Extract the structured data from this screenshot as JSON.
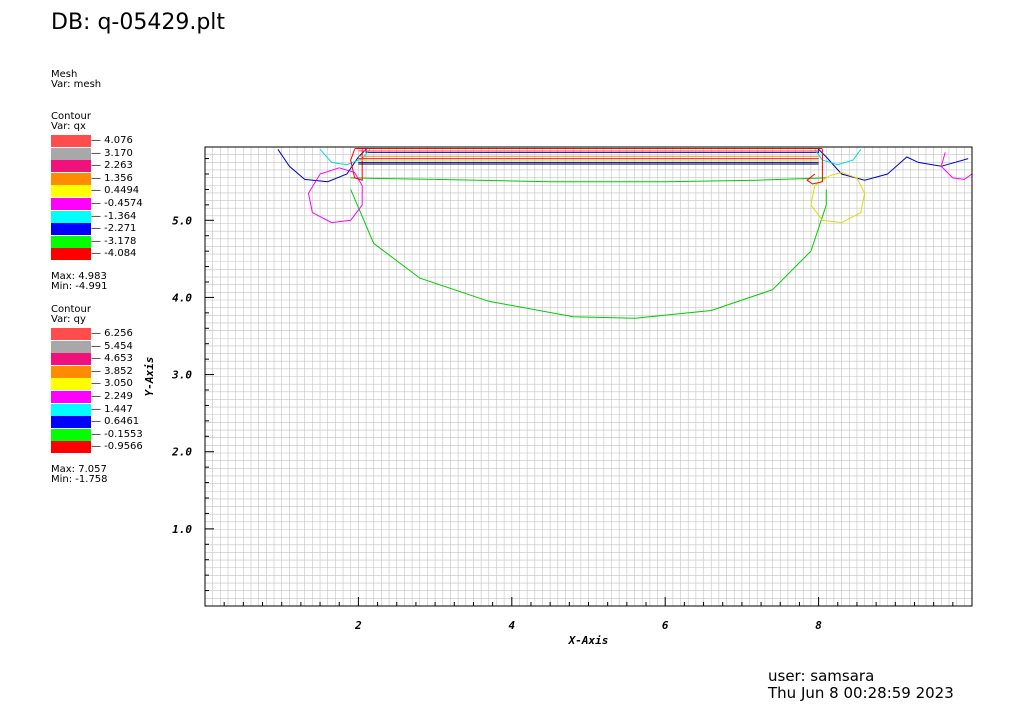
{
  "title": "DB: q-05429.plt",
  "mesh_legend": {
    "header": "Mesh",
    "var": "Var: mesh"
  },
  "qx_legend": {
    "header": "Contour",
    "var": "Var: qx",
    "entries": [
      {
        "label": "4.076",
        "color": "#ff4d4d"
      },
      {
        "label": "3.170",
        "color": "#a8a8a8"
      },
      {
        "label": "2.263",
        "color": "#f0117a"
      },
      {
        "label": "1.356",
        "color": "#ff8c00"
      },
      {
        "label": "0.4494",
        "color": "#ffff00"
      },
      {
        "label": "-0.4574",
        "color": "#ff00ff"
      },
      {
        "label": "-1.364",
        "color": "#00ffff"
      },
      {
        "label": "-2.271",
        "color": "#0000ff"
      },
      {
        "label": "-3.178",
        "color": "#00ff00"
      },
      {
        "label": "-4.084",
        "color": "#ff0000"
      }
    ],
    "max": "Max:  4.983",
    "min": "Min: -4.991"
  },
  "qy_legend": {
    "header": "Contour",
    "var": "Var: qy",
    "entries": [
      {
        "label": "6.256",
        "color": "#ff4d4d"
      },
      {
        "label": "5.454",
        "color": "#a8a8a8"
      },
      {
        "label": "4.653",
        "color": "#f0117a"
      },
      {
        "label": "3.852",
        "color": "#ff8c00"
      },
      {
        "label": "3.050",
        "color": "#ffff00"
      },
      {
        "label": "2.249",
        "color": "#ff00ff"
      },
      {
        "label": "1.447",
        "color": "#00ffff"
      },
      {
        "label": "0.6461",
        "color": "#0000ff"
      },
      {
        "label": "-0.1553",
        "color": "#00ff00"
      },
      {
        "label": "-0.9566",
        "color": "#ff0000"
      }
    ],
    "max": "Max:  7.057",
    "min": "Min: -1.758"
  },
  "footer": {
    "user": "user: samsara",
    "timestamp": "Thu Jun  8 00:28:59 2023"
  },
  "chart_data": {
    "type": "contour",
    "xlabel": "X-Axis",
    "ylabel": "Y-Axis",
    "xlim": [
      0.0,
      10.0
    ],
    "ylim": [
      0.0,
      5.95
    ],
    "xticks": [
      {
        "value": 2,
        "label": "2"
      },
      {
        "value": 4,
        "label": "4"
      },
      {
        "value": 6,
        "label": "6"
      },
      {
        "value": 8,
        "label": "8"
      }
    ],
    "yticks": [
      {
        "value": 1.0,
        "label": "1.0"
      },
      {
        "value": 2.0,
        "label": "2.0"
      },
      {
        "value": 3.0,
        "label": "3.0"
      },
      {
        "value": 4.0,
        "label": "4.0"
      },
      {
        "value": 5.0,
        "label": "5.0"
      }
    ],
    "mesh": {
      "nx": 100,
      "ny": 60
    },
    "contours": [
      {
        "name": "large-green-bowl",
        "color": "#00cc00",
        "points": [
          [
            1.9,
            5.4
          ],
          [
            2.2,
            4.7
          ],
          [
            2.8,
            4.25
          ],
          [
            3.7,
            3.95
          ],
          [
            4.8,
            3.75
          ],
          [
            5.6,
            3.73
          ],
          [
            6.6,
            3.83
          ],
          [
            7.4,
            4.1
          ],
          [
            7.9,
            4.6
          ],
          [
            8.1,
            5.2
          ],
          [
            8.1,
            5.4
          ]
        ]
      },
      {
        "name": "green-top-line",
        "color": "#00cc00",
        "points": [
          [
            1.9,
            5.55
          ],
          [
            3.0,
            5.53
          ],
          [
            4.5,
            5.5
          ],
          [
            6.0,
            5.5
          ],
          [
            7.2,
            5.52
          ],
          [
            8.1,
            5.55
          ]
        ]
      },
      {
        "name": "blue-wave",
        "color": "#0000cc",
        "points": [
          [
            0.95,
            5.92
          ],
          [
            1.1,
            5.7
          ],
          [
            1.3,
            5.53
          ],
          [
            1.6,
            5.5
          ],
          [
            1.85,
            5.6
          ],
          [
            2.0,
            5.82
          ],
          [
            2.1,
            5.92
          ],
          [
            2.1,
            5.88
          ],
          [
            8.0,
            5.88
          ],
          [
            8.0,
            5.92
          ],
          [
            8.1,
            5.82
          ],
          [
            8.3,
            5.6
          ],
          [
            8.6,
            5.52
          ],
          [
            8.9,
            5.6
          ],
          [
            9.15,
            5.82
          ],
          [
            9.3,
            5.75
          ],
          [
            9.6,
            5.7
          ],
          [
            9.95,
            5.8
          ]
        ]
      },
      {
        "name": "magenta-circle-left",
        "color": "#ff00ff",
        "points": [
          [
            1.75,
            5.68
          ],
          [
            1.5,
            5.6
          ],
          [
            1.35,
            5.35
          ],
          [
            1.4,
            5.1
          ],
          [
            1.65,
            4.97
          ],
          [
            1.9,
            5.0
          ],
          [
            2.05,
            5.2
          ],
          [
            2.05,
            5.45
          ],
          [
            1.95,
            5.62
          ],
          [
            1.75,
            5.68
          ]
        ]
      },
      {
        "name": "yellow-circle-right",
        "color": "#dddd00",
        "points": [
          [
            8.15,
            5.58
          ],
          [
            7.95,
            5.45
          ],
          [
            7.9,
            5.2
          ],
          [
            8.05,
            5.0
          ],
          [
            8.3,
            4.97
          ],
          [
            8.55,
            5.1
          ],
          [
            8.6,
            5.35
          ],
          [
            8.5,
            5.55
          ],
          [
            8.3,
            5.62
          ],
          [
            8.15,
            5.58
          ]
        ]
      },
      {
        "name": "magenta-circle-far-right",
        "color": "#ff00ff",
        "points": [
          [
            9.65,
            5.88
          ],
          [
            9.6,
            5.7
          ],
          [
            9.75,
            5.55
          ],
          [
            9.9,
            5.53
          ],
          [
            10.0,
            5.6
          ],
          [
            10.0,
            5.9
          ]
        ]
      },
      {
        "name": "cyan-left",
        "color": "#00dddd",
        "points": [
          [
            1.5,
            5.92
          ],
          [
            1.65,
            5.75
          ],
          [
            1.85,
            5.72
          ],
          [
            2.05,
            5.8
          ],
          [
            2.15,
            5.92
          ]
        ]
      },
      {
        "name": "cyan-right",
        "color": "#00dddd",
        "points": [
          [
            7.95,
            5.92
          ],
          [
            8.05,
            5.78
          ],
          [
            8.25,
            5.72
          ],
          [
            8.45,
            5.78
          ],
          [
            8.55,
            5.92
          ]
        ]
      },
      {
        "name": "red-left",
        "color": "#ff0000",
        "points": [
          [
            1.95,
            5.92
          ],
          [
            1.9,
            5.78
          ],
          [
            1.95,
            5.55
          ],
          [
            2.05,
            5.52
          ],
          [
            2.05,
            5.92
          ]
        ]
      },
      {
        "name": "red-right",
        "color": "#ff0000",
        "points": [
          [
            7.95,
            5.6
          ],
          [
            7.85,
            5.52
          ],
          [
            7.92,
            5.47
          ],
          [
            8.05,
            5.5
          ],
          [
            8.05,
            5.92
          ]
        ]
      },
      {
        "name": "red-horizontal",
        "color": "#ff0000",
        "points": [
          [
            1.95,
            5.93
          ],
          [
            8.05,
            5.93
          ]
        ]
      },
      {
        "name": "salmon-horizontal",
        "color": "#ff5555",
        "points": [
          [
            2.0,
            5.9
          ],
          [
            8.0,
            5.9
          ]
        ]
      },
      {
        "name": "orange-horizontal",
        "color": "#ff8c00",
        "points": [
          [
            2.0,
            5.83
          ],
          [
            8.0,
            5.83
          ]
        ]
      },
      {
        "name": "pink-horizontal",
        "color": "#f0117a",
        "points": [
          [
            2.0,
            5.8
          ],
          [
            8.0,
            5.8
          ]
        ]
      },
      {
        "name": "yellow-horizontal",
        "color": "#dddd00",
        "points": [
          [
            2.0,
            5.78
          ],
          [
            8.0,
            5.78
          ]
        ]
      },
      {
        "name": "blue-horizontal",
        "color": "#0000cc",
        "points": [
          [
            2.0,
            5.75
          ],
          [
            8.0,
            5.75
          ]
        ]
      },
      {
        "name": "black-horizontal",
        "color": "#000000",
        "points": [
          [
            2.0,
            5.73
          ],
          [
            8.0,
            5.73
          ]
        ]
      }
    ]
  }
}
